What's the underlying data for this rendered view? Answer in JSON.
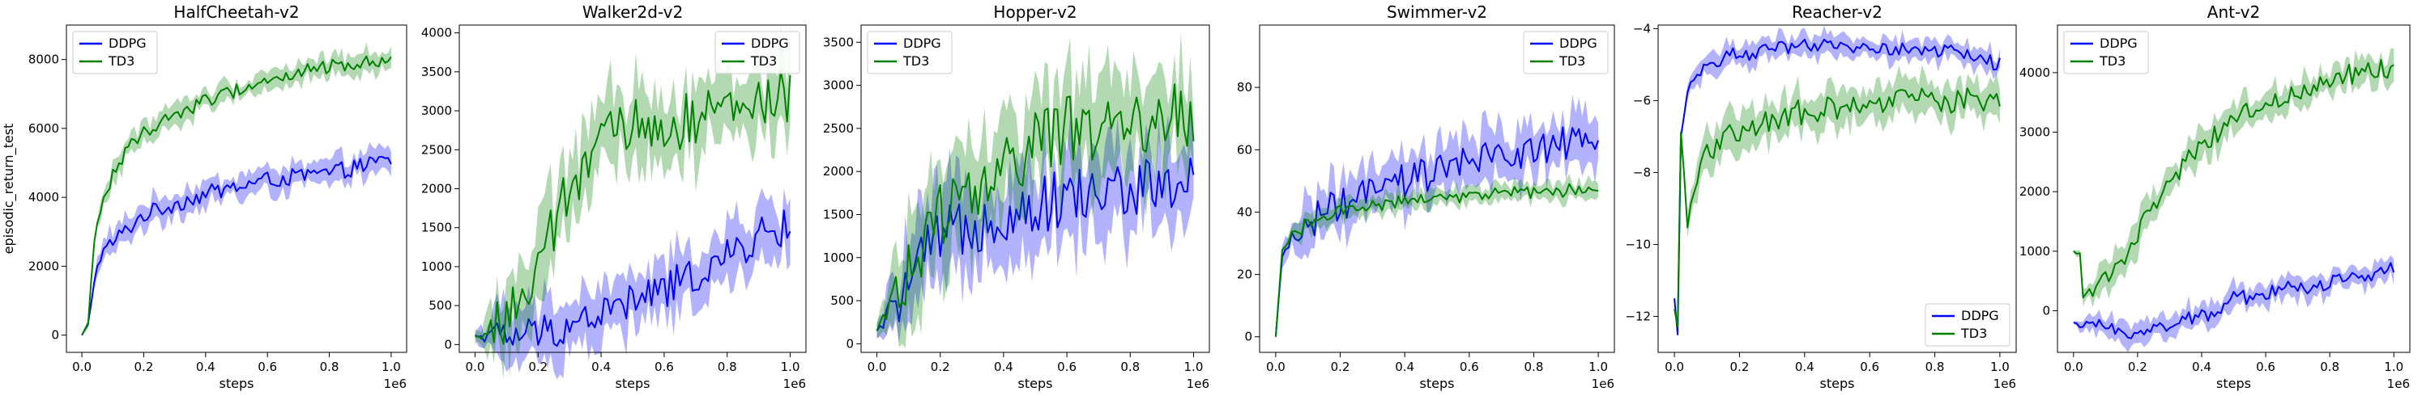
{
  "chart_data": [
    {
      "type": "line",
      "title": "HalfCheetah-v2",
      "xlabel": "steps",
      "ylabel": "episodic_return_test",
      "x_offset_text": "1e6",
      "xlim": [
        -0.05,
        1.05
      ],
      "ylim": [
        -500,
        9000
      ],
      "xticks": [
        0.0,
        0.2,
        0.4,
        0.6,
        0.8,
        1.0
      ],
      "xtick_labels": [
        "0.0",
        "0.2",
        "0.4",
        "0.6",
        "0.8",
        "1.0"
      ],
      "yticks": [
        0,
        2000,
        4000,
        6000,
        8000
      ],
      "ytick_labels": [
        "0",
        "2000",
        "4000",
        "6000",
        "8000"
      ],
      "legend_loc": "upper-left",
      "series": [
        {
          "name": "DDPG",
          "color": "#0000ff",
          "band": 350,
          "x": [
            0,
            0.02,
            0.04,
            0.06,
            0.1,
            0.15,
            0.2,
            0.3,
            0.4,
            0.5,
            0.6,
            0.7,
            0.8,
            0.9,
            1.0
          ],
          "y": [
            0,
            300,
            1600,
            2300,
            2700,
            3100,
            3500,
            3800,
            4100,
            4300,
            4500,
            4600,
            4700,
            4900,
            5100
          ]
        },
        {
          "name": "TD3",
          "color": "#008000",
          "band": 300,
          "x": [
            0,
            0.02,
            0.04,
            0.06,
            0.1,
            0.15,
            0.2,
            0.3,
            0.4,
            0.5,
            0.6,
            0.7,
            0.8,
            0.9,
            1.0
          ],
          "y": [
            0,
            300,
            2800,
            3600,
            4700,
            5400,
            5900,
            6400,
            6800,
            7100,
            7400,
            7600,
            7800,
            7900,
            8000
          ]
        }
      ]
    },
    {
      "type": "line",
      "title": "Walker2d-v2",
      "xlabel": "steps",
      "ylabel": "",
      "x_offset_text": "1e6",
      "xlim": [
        -0.05,
        1.05
      ],
      "ylim": [
        -100,
        4100
      ],
      "xticks": [
        0.0,
        0.2,
        0.4,
        0.6,
        0.8,
        1.0
      ],
      "xtick_labels": [
        "0.0",
        "0.2",
        "0.4",
        "0.6",
        "0.8",
        "1.0"
      ],
      "yticks": [
        0,
        500,
        1000,
        1500,
        2000,
        2500,
        3000,
        3500,
        4000
      ],
      "ytick_labels": [
        "0",
        "500",
        "1000",
        "1500",
        "2000",
        "2500",
        "3000",
        "3500",
        "4000"
      ],
      "legend_loc": "upper-right",
      "series": [
        {
          "name": "DDPG",
          "color": "#0000ff",
          "band": 350,
          "x": [
            0,
            0.1,
            0.2,
            0.3,
            0.4,
            0.5,
            0.6,
            0.7,
            0.8,
            0.9,
            1.0
          ],
          "y": [
            120,
            100,
            150,
            250,
            400,
            550,
            700,
            900,
            1100,
            1400,
            1500
          ]
        },
        {
          "name": "TD3",
          "color": "#008000",
          "band": 500,
          "x": [
            0,
            0.05,
            0.1,
            0.15,
            0.2,
            0.25,
            0.3,
            0.35,
            0.4,
            0.5,
            0.6,
            0.7,
            0.8,
            0.9,
            1.0
          ],
          "y": [
            100,
            200,
            350,
            600,
            900,
            1500,
            2000,
            2300,
            2600,
            2800,
            2800,
            2900,
            3000,
            3100,
            3200
          ]
        }
      ]
    },
    {
      "type": "line",
      "title": "Hopper-v2",
      "xlabel": "steps",
      "ylabel": "",
      "x_offset_text": "1e6",
      "xlim": [
        -0.05,
        1.05
      ],
      "ylim": [
        -100,
        3700
      ],
      "xticks": [
        0.0,
        0.2,
        0.4,
        0.6,
        0.8,
        1.0
      ],
      "xtick_labels": [
        "0.0",
        "0.2",
        "0.4",
        "0.6",
        "0.8",
        "1.0"
      ],
      "yticks": [
        0,
        500,
        1000,
        1500,
        2000,
        2500,
        3000,
        3500
      ],
      "ytick_labels": [
        "0",
        "500",
        "1000",
        "1500",
        "2000",
        "2500",
        "3000",
        "3500"
      ],
      "legend_loc": "upper-left",
      "series": [
        {
          "name": "DDPG",
          "color": "#0000ff",
          "band": 500,
          "x": [
            0,
            0.05,
            0.1,
            0.15,
            0.2,
            0.3,
            0.4,
            0.5,
            0.6,
            0.7,
            0.8,
            0.9,
            1.0
          ],
          "y": [
            150,
            400,
            700,
            1000,
            1200,
            1400,
            1500,
            1600,
            1700,
            1750,
            1800,
            1800,
            1900
          ]
        },
        {
          "name": "TD3",
          "color": "#008000",
          "band": 550,
          "x": [
            0,
            0.05,
            0.1,
            0.15,
            0.2,
            0.3,
            0.4,
            0.5,
            0.6,
            0.7,
            0.8,
            0.9,
            1.0
          ],
          "y": [
            150,
            500,
            900,
            1200,
            1500,
            1800,
            2000,
            2300,
            2500,
            2500,
            2550,
            2600,
            2700
          ]
        }
      ]
    },
    {
      "type": "line",
      "title": "Swimmer-v2",
      "xlabel": "steps",
      "ylabel": "",
      "x_offset_text": "1e6",
      "xlim": [
        -0.05,
        1.05
      ],
      "ylim": [
        -5,
        100
      ],
      "xticks": [
        0.0,
        0.2,
        0.4,
        0.6,
        0.8,
        1.0
      ],
      "xtick_labels": [
        "0.0",
        "0.2",
        "0.4",
        "0.6",
        "0.8",
        "1.0"
      ],
      "yticks": [
        0,
        20,
        40,
        60,
        80
      ],
      "ytick_labels": [
        "0",
        "20",
        "40",
        "60",
        "80"
      ],
      "legend_loc": "upper-right",
      "series": [
        {
          "name": "DDPG",
          "color": "#0000ff",
          "band": 8,
          "x": [
            0,
            0.02,
            0.05,
            0.1,
            0.15,
            0.2,
            0.3,
            0.4,
            0.5,
            0.6,
            0.7,
            0.8,
            0.9,
            1.0
          ],
          "y": [
            0,
            25,
            32,
            36,
            40,
            42,
            46,
            50,
            53,
            56,
            58,
            60,
            62,
            60
          ]
        },
        {
          "name": "TD3",
          "color": "#008000",
          "band": 3,
          "x": [
            0,
            0.02,
            0.05,
            0.1,
            0.15,
            0.2,
            0.3,
            0.4,
            0.5,
            0.6,
            0.7,
            0.8,
            0.9,
            1.0
          ],
          "y": [
            0,
            28,
            33,
            36,
            38,
            40,
            42,
            44,
            45,
            45,
            46,
            46,
            47,
            48
          ]
        }
      ]
    },
    {
      "type": "line",
      "title": "Reacher-v2",
      "xlabel": "steps",
      "ylabel": "",
      "x_offset_text": "1e6",
      "xlim": [
        -0.05,
        1.05
      ],
      "ylim": [
        -13,
        -3.9
      ],
      "xticks": [
        0.0,
        0.2,
        0.4,
        0.6,
        0.8,
        1.0
      ],
      "xtick_labels": [
        "0.0",
        "0.2",
        "0.4",
        "0.6",
        "0.8",
        "1.0"
      ],
      "yticks": [
        -12,
        -10,
        -8,
        -6,
        -4
      ],
      "ytick_labels": [
        "−12",
        "−10",
        "−8",
        "−6",
        "−4"
      ],
      "legend_loc": "lower-right",
      "series": [
        {
          "name": "DDPG",
          "color": "#0000ff",
          "band": 0.3,
          "x": [
            0,
            0.01,
            0.02,
            0.04,
            0.06,
            0.1,
            0.15,
            0.2,
            0.3,
            0.4,
            0.5,
            0.6,
            0.7,
            0.8,
            0.9,
            1.0
          ],
          "y": [
            -11.5,
            -12.5,
            -7.0,
            -5.8,
            -5.3,
            -5.0,
            -4.8,
            -4.7,
            -4.6,
            -4.5,
            -4.5,
            -4.5,
            -4.6,
            -4.6,
            -4.7,
            -5.0
          ]
        },
        {
          "name": "TD3",
          "color": "#008000",
          "band": 0.5,
          "x": [
            0,
            0.01,
            0.02,
            0.04,
            0.06,
            0.08,
            0.1,
            0.15,
            0.2,
            0.3,
            0.4,
            0.5,
            0.6,
            0.7,
            0.8,
            0.9,
            1.0
          ],
          "y": [
            -11.8,
            -12.3,
            -6.8,
            -9.5,
            -8.5,
            -8.0,
            -7.5,
            -7.0,
            -6.8,
            -6.5,
            -6.3,
            -6.2,
            -6.1,
            -6.0,
            -6.0,
            -6.0,
            -6.1
          ]
        }
      ]
    },
    {
      "type": "line",
      "title": "Ant-v2",
      "xlabel": "steps",
      "ylabel": "",
      "x_offset_text": "1e6",
      "xlim": [
        -0.05,
        1.05
      ],
      "ylim": [
        -700,
        4800
      ],
      "xticks": [
        0.0,
        0.2,
        0.4,
        0.6,
        0.8,
        1.0
      ],
      "xtick_labels": [
        "0.0",
        "0.2",
        "0.4",
        "0.6",
        "0.8",
        "1.0"
      ],
      "yticks": [
        0,
        1000,
        2000,
        3000,
        4000
      ],
      "ytick_labels": [
        "0",
        "1000",
        "2000",
        "3000",
        "4000"
      ],
      "legend_loc": "upper-left",
      "series": [
        {
          "name": "DDPG",
          "color": "#0000ff",
          "band": 200,
          "x": [
            0,
            0.02,
            0.05,
            0.1,
            0.2,
            0.3,
            0.4,
            0.5,
            0.6,
            0.7,
            0.8,
            0.9,
            1.0
          ],
          "y": [
            -200,
            -250,
            -250,
            -300,
            -350,
            -250,
            -100,
            200,
            300,
            400,
            450,
            600,
            750
          ]
        },
        {
          "name": "TD3",
          "color": "#008000",
          "band": 250,
          "x": [
            0,
            0.02,
            0.03,
            0.05,
            0.1,
            0.15,
            0.2,
            0.3,
            0.4,
            0.5,
            0.6,
            0.7,
            0.8,
            0.9,
            1.0
          ],
          "y": [
            1000,
            950,
            200,
            300,
            500,
            800,
            1300,
            2200,
            2800,
            3200,
            3500,
            3700,
            3900,
            4000,
            4100
          ]
        }
      ]
    }
  ]
}
